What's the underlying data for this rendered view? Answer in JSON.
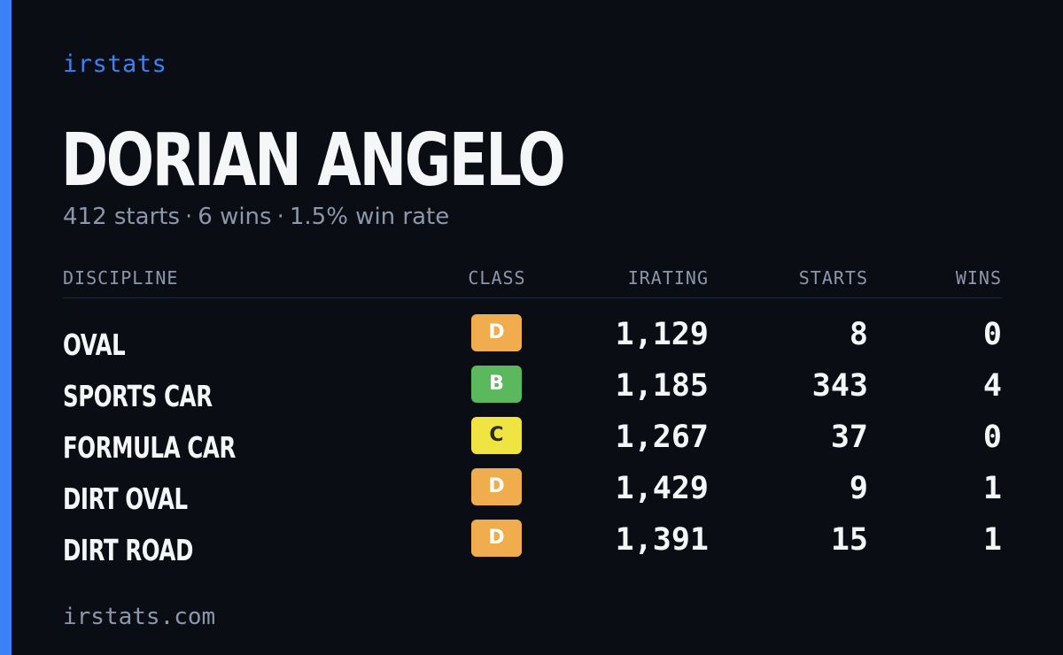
{
  "brand": "irstats",
  "driver": {
    "name": "DORIAN ANGELO",
    "starts_text": "412 starts",
    "wins_text": "6 wins",
    "win_rate_text": "1.5% win rate",
    "separator": "·"
  },
  "table": {
    "headers": {
      "discipline": "DISCIPLINE",
      "class": "CLASS",
      "irating": "IRATING",
      "starts": "STARTS",
      "wins": "WINS"
    },
    "rows": [
      {
        "discipline": "OVAL",
        "class": "D",
        "class_color": "#f0ad4e",
        "class_text_color": "#ffffff",
        "irating": "1,129",
        "starts": "8",
        "wins": "0"
      },
      {
        "discipline": "SPORTS CAR",
        "class": "B",
        "class_color": "#5cb85c",
        "class_text_color": "#ffffff",
        "irating": "1,185",
        "starts": "343",
        "wins": "4"
      },
      {
        "discipline": "FORMULA CAR",
        "class": "C",
        "class_color": "#f0e442",
        "class_text_color": "#2a2a2a",
        "irating": "1,267",
        "starts": "37",
        "wins": "0"
      },
      {
        "discipline": "DIRT OVAL",
        "class": "D",
        "class_color": "#f0ad4e",
        "class_text_color": "#ffffff",
        "irating": "1,429",
        "starts": "9",
        "wins": "1"
      },
      {
        "discipline": "DIRT ROAD",
        "class": "D",
        "class_color": "#f0ad4e",
        "class_text_color": "#ffffff",
        "irating": "1,391",
        "starts": "15",
        "wins": "1"
      }
    ]
  },
  "footer": {
    "url": "irstats.com"
  },
  "colors": {
    "background": "#0a0d14",
    "accent": "#3b82f6",
    "text_primary": "#f5f6f8",
    "text_muted": "#8c97ab"
  }
}
